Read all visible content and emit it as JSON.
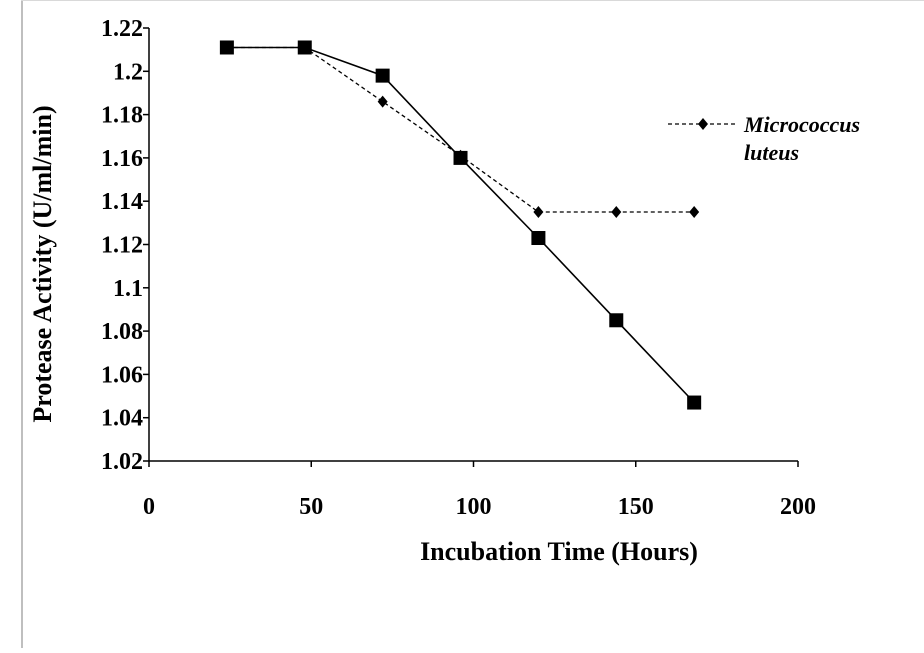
{
  "chart_data": {
    "type": "line",
    "title": "",
    "xlabel": "Incubation Time (Hours)",
    "ylabel": "Protease Activity (U/ml/min)",
    "xlim": [
      0,
      200
    ],
    "ylim": [
      1.02,
      1.22
    ],
    "x_ticks": [
      "0",
      "50",
      "100",
      "150",
      "200"
    ],
    "y_ticks": [
      "1.02",
      "1.04",
      "1.06",
      "1.08",
      "1.1",
      "1.12",
      "1.14",
      "1.16",
      "1.18",
      "1.2",
      "1.22"
    ],
    "grid": false,
    "legend_position": "right",
    "series": [
      {
        "name": "",
        "marker": "square",
        "line_style": "solid",
        "color": "#000000",
        "x": [
          24,
          48,
          72,
          96,
          120,
          144,
          168
        ],
        "y": [
          1.211,
          1.211,
          1.198,
          1.16,
          1.123,
          1.085,
          1.047
        ]
      },
      {
        "name": "Micrococcus luteus",
        "legend_lines": [
          "Micrococcus",
          "luteus"
        ],
        "marker": "diamond",
        "line_style": "dashed",
        "color": "#000000",
        "x": [
          24,
          48,
          72,
          96,
          120,
          144,
          168
        ],
        "y": [
          1.211,
          1.211,
          1.186,
          1.161,
          1.135,
          1.135,
          1.135
        ]
      }
    ]
  }
}
